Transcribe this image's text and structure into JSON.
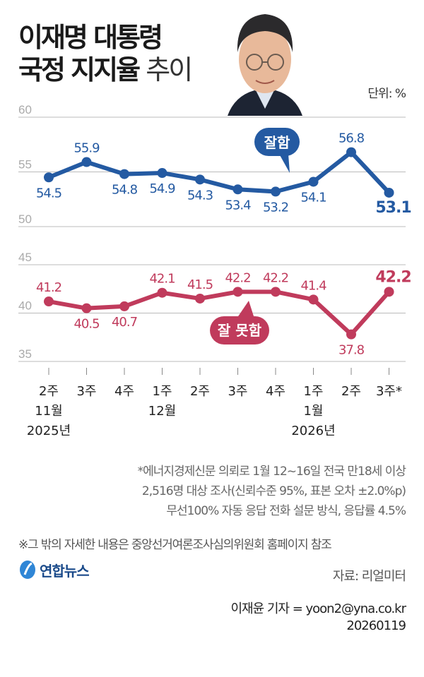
{
  "header": {
    "title_line1": "이재명 대통령",
    "title_line2_bold": "국정 지지율",
    "title_line2_light": "추이",
    "unit": "단위: %"
  },
  "colors": {
    "approve": "#245aa2",
    "disapprove": "#c03b5c",
    "grid": "#bbbbbb",
    "axis_label": "#aaaaaa"
  },
  "chart_data": {
    "type": "line",
    "title": "이재명 대통령 국정 지지율 추이",
    "unit": "%",
    "x": [
      "2주",
      "3주",
      "4주",
      "1주",
      "2주",
      "3주",
      "4주",
      "1주",
      "2주",
      "3주*"
    ],
    "month_labels": [
      {
        "index": 0,
        "label": "11월"
      },
      {
        "index": 3,
        "label": "12월"
      },
      {
        "index": 7,
        "label": "1월"
      }
    ],
    "year_labels": [
      {
        "index": 0,
        "label": "2025년"
      },
      {
        "index": 7,
        "label": "2026년"
      }
    ],
    "yticks_upper": [
      50,
      55,
      60
    ],
    "yticks_lower": [
      35,
      40,
      45
    ],
    "ylim_upper": [
      50,
      60
    ],
    "ylim_lower": [
      35,
      45
    ],
    "grid": true,
    "series": [
      {
        "name": "잘함",
        "values": [
          54.5,
          55.9,
          54.8,
          54.9,
          54.3,
          53.4,
          53.2,
          54.1,
          56.8,
          53.1
        ],
        "label_pos": [
          "below",
          "above",
          "below",
          "below",
          "below",
          "below",
          "below",
          "below",
          "above",
          "below"
        ]
      },
      {
        "name": "잘 못함",
        "values": [
          41.2,
          40.5,
          40.7,
          42.1,
          41.5,
          42.2,
          42.2,
          41.4,
          37.8,
          42.2
        ],
        "label_pos": [
          "above",
          "below",
          "below",
          "above",
          "above",
          "above",
          "above",
          "above",
          "below",
          "above"
        ]
      }
    ],
    "value_labels": {
      "approve": [
        "54.5",
        "55.9",
        "54.8",
        "54.9",
        "54.3",
        "53.4",
        "53.2",
        "54.1",
        "56.8",
        "53.1"
      ],
      "disapprove": [
        "41.2",
        "40.5",
        "40.7",
        "42.1",
        "41.5",
        "42.2",
        "42.2",
        "41.4",
        "37.8",
        "42.2"
      ]
    }
  },
  "footer": {
    "note_line1": "*에너지경제신문 의뢰로 1월 12~16일 전국 만18세 이상",
    "note_line2": "2,516명 대상 조사(신뢰수준 95%, 표본 오차 ±2.0%p)",
    "note_line3": "무선100% 자동 응답 전화 설문 방식, 응답률 4.5%",
    "reference": "※그 밖의 자세한 내용은 중앙선거여론조사심의위원회 홈페이지 참조",
    "logo": "연합뉴스",
    "source": "자료: 리얼미터",
    "reporter": "이재윤 기자 = yoon2@yna.co.kr",
    "date": "20260119"
  }
}
